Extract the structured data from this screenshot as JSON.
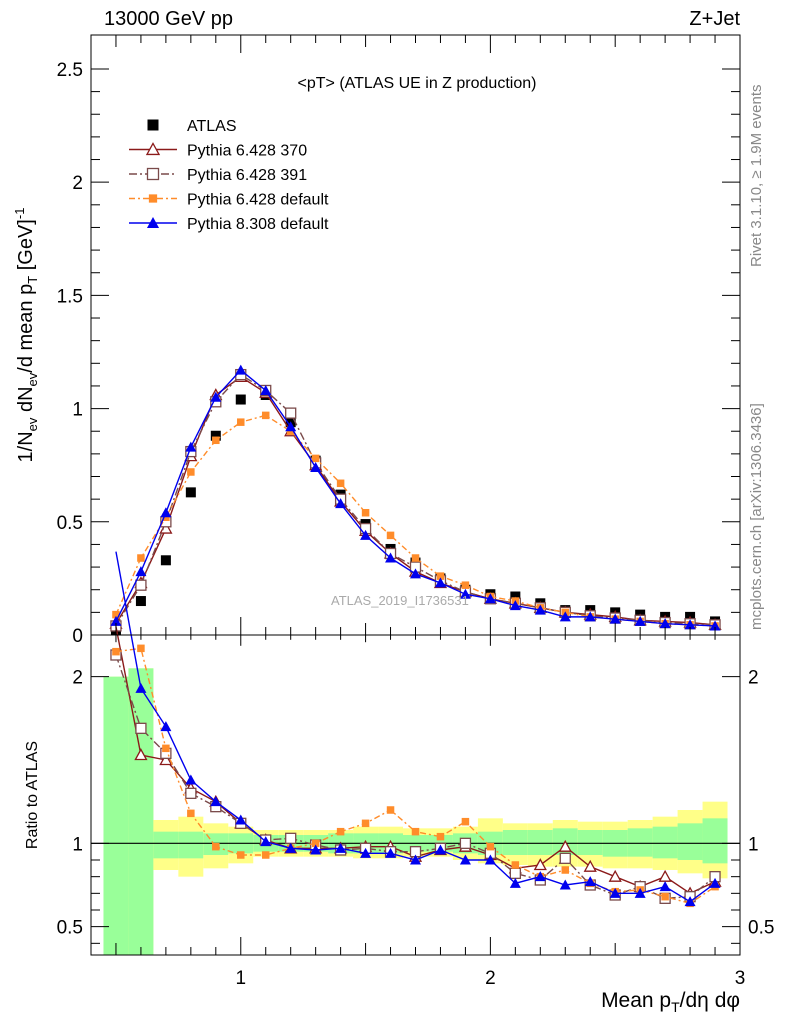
{
  "header": {
    "energy_label": "13000 GeV pp",
    "process_label": "Z+Jet"
  },
  "side": {
    "rivet_label": "Rivet 3.1.10, ≥ 1.9M events",
    "mcplots_label": "mcplots.cern.ch [arXiv:1306.3436]"
  },
  "watermark": "ATLAS_2019_I1736531",
  "chart_data": {
    "type": "line",
    "title": "<pT> (ATLAS UE in Z production)",
    "xlabel": "Mean p_T/dη dφ",
    "ylabel_main": "1/N_ev dN_ev/d mean p_T [GeV]^-1",
    "ylabel_ratio": "Ratio to ATLAS",
    "xlim": [
      0.4,
      3.0
    ],
    "ylim_main": [
      0,
      2.65
    ],
    "ylim_ratio": [
      0.33,
      2.25
    ],
    "x_ticks": [
      "1",
      "2",
      "3"
    ],
    "y_ticks_main": [
      "0",
      "0.5",
      "1",
      "1.5",
      "2",
      "2.5"
    ],
    "y_ticks_ratio": [
      "0.5",
      "1",
      "2"
    ],
    "legend_position": "top-left",
    "x": [
      0.5,
      0.6,
      0.7,
      0.8,
      0.9,
      1.0,
      1.1,
      1.2,
      1.3,
      1.4,
      1.5,
      1.6,
      1.7,
      1.8,
      1.9,
      2.0,
      2.1,
      2.2,
      2.3,
      2.4,
      2.5,
      2.6,
      2.7,
      2.8,
      2.9
    ],
    "series": [
      {
        "name": "ATLAS",
        "color": "#000000",
        "marker": "filled-square",
        "values": [
          0.02,
          0.15,
          0.33,
          0.63,
          0.88,
          1.04,
          1.06,
          0.94,
          0.77,
          0.62,
          0.49,
          0.38,
          0.32,
          0.25,
          0.2,
          0.18,
          0.17,
          0.14,
          0.11,
          0.11,
          0.1,
          0.09,
          0.08,
          0.08,
          0.06
        ],
        "ratio": [
          1,
          1,
          1,
          1,
          1,
          1,
          1,
          1,
          1,
          1,
          1,
          1,
          1,
          1,
          1,
          1,
          1,
          1,
          1,
          1,
          1,
          1,
          1,
          1,
          1
        ]
      },
      {
        "name": "Pythia 6.428 370",
        "color": "#8b1a1a",
        "marker": "open-triangle",
        "values": [
          0.05,
          0.23,
          0.47,
          0.79,
          1.06,
          1.14,
          1.07,
          0.9,
          0.75,
          0.59,
          0.46,
          0.36,
          0.28,
          0.23,
          0.19,
          0.16,
          0.14,
          0.12,
          0.1,
          0.09,
          0.08,
          0.065,
          0.06,
          0.055,
          0.045
        ],
        "ratio": [
          2.3,
          1.53,
          1.5,
          1.33,
          1.25,
          1.12,
          1.02,
          0.97,
          0.97,
          0.97,
          0.98,
          0.98,
          0.92,
          0.96,
          0.98,
          0.93,
          0.85,
          0.87,
          0.98,
          0.86,
          0.8,
          0.74,
          0.8,
          0.7,
          0.77
        ]
      },
      {
        "name": "Pythia 6.428 391",
        "color": "#7a4a4a",
        "marker": "open-square",
        "values": [
          0.04,
          0.22,
          0.5,
          0.81,
          1.03,
          1.15,
          1.08,
          0.98,
          0.76,
          0.6,
          0.47,
          0.36,
          0.3,
          0.24,
          0.19,
          0.16,
          0.14,
          0.12,
          0.1,
          0.085,
          0.075,
          0.065,
          0.055,
          0.05,
          0.045
        ],
        "ratio": [
          2.13,
          1.69,
          1.54,
          1.3,
          1.22,
          1.12,
          1.02,
          1.03,
          0.99,
          0.96,
          0.97,
          0.95,
          0.95,
          0.97,
          1.0,
          0.94,
          0.82,
          0.78,
          0.91,
          0.75,
          0.69,
          0.74,
          0.67,
          0.68,
          0.8
        ]
      },
      {
        "name": "Pythia 6.428 default",
        "color": "#ff8c2a",
        "marker": "filled-small-square",
        "values": [
          0.09,
          0.34,
          0.52,
          0.72,
          0.86,
          0.94,
          0.97,
          0.9,
          0.78,
          0.67,
          0.54,
          0.44,
          0.34,
          0.26,
          0.22,
          0.17,
          0.15,
          0.12,
          0.1,
          0.08,
          0.07,
          0.06,
          0.05,
          0.045,
          0.04
        ],
        "ratio": [
          2.15,
          2.17,
          1.57,
          1.18,
          0.98,
          0.93,
          0.93,
          0.97,
          1.0,
          1.07,
          1.12,
          1.2,
          1.07,
          1.04,
          1.13,
          0.98,
          0.87,
          0.8,
          0.84,
          0.76,
          0.71,
          0.72,
          0.68,
          0.64,
          0.74
        ]
      },
      {
        "name": "Pythia 8.308 default",
        "color": "#0000ee",
        "marker": "filled-triangle",
        "values": [
          0.06,
          0.28,
          0.54,
          0.83,
          1.05,
          1.17,
          1.08,
          0.92,
          0.74,
          0.58,
          0.44,
          0.34,
          0.27,
          0.23,
          0.18,
          0.16,
          0.13,
          0.11,
          0.08,
          0.08,
          0.07,
          0.06,
          0.05,
          0.045,
          0.04
        ],
        "ratio": [
          2.75,
          1.93,
          1.7,
          1.38,
          1.25,
          1.14,
          1.01,
          0.97,
          0.96,
          0.97,
          0.94,
          0.94,
          0.9,
          0.96,
          0.9,
          0.9,
          0.76,
          0.8,
          0.75,
          0.77,
          0.7,
          0.7,
          0.74,
          0.65,
          0.76
        ]
      }
    ],
    "uncertainty_bands": {
      "colors": {
        "inner": "#99ff99",
        "outer": "#ffff88"
      },
      "inner": [
        [
          0.33,
          2.0
        ],
        [
          0.33,
          2.05
        ],
        [
          0.91,
          1.07
        ],
        [
          0.91,
          1.07
        ],
        [
          0.93,
          1.06
        ],
        [
          0.94,
          1.06
        ],
        [
          0.95,
          1.05
        ],
        [
          0.95,
          1.05
        ],
        [
          0.95,
          1.05
        ],
        [
          0.94,
          1.06
        ],
        [
          0.94,
          1.06
        ],
        [
          0.94,
          1.06
        ],
        [
          0.95,
          1.05
        ],
        [
          0.95,
          1.05
        ],
        [
          0.94,
          1.06
        ],
        [
          0.93,
          1.07
        ],
        [
          0.93,
          1.08
        ],
        [
          0.93,
          1.08
        ],
        [
          0.93,
          1.09
        ],
        [
          0.93,
          1.08
        ],
        [
          0.92,
          1.08
        ],
        [
          0.92,
          1.09
        ],
        [
          0.91,
          1.1
        ],
        [
          0.9,
          1.12
        ],
        [
          0.88,
          1.15
        ]
      ],
      "outer": [
        [
          0.33,
          2.0
        ],
        [
          0.33,
          2.05
        ],
        [
          0.84,
          1.14
        ],
        [
          0.8,
          1.16
        ],
        [
          0.85,
          1.12
        ],
        [
          0.88,
          1.1
        ],
        [
          0.92,
          1.08
        ],
        [
          0.92,
          1.08
        ],
        [
          0.92,
          1.08
        ],
        [
          0.92,
          1.08
        ],
        [
          0.91,
          1.1
        ],
        [
          0.91,
          1.1
        ],
        [
          0.92,
          1.09
        ],
        [
          0.92,
          1.09
        ],
        [
          0.9,
          1.1
        ],
        [
          0.88,
          1.15
        ],
        [
          0.87,
          1.12
        ],
        [
          0.86,
          1.12
        ],
        [
          0.86,
          1.14
        ],
        [
          0.86,
          1.13
        ],
        [
          0.85,
          1.13
        ],
        [
          0.85,
          1.14
        ],
        [
          0.84,
          1.16
        ],
        [
          0.82,
          1.2
        ],
        [
          0.79,
          1.25
        ]
      ]
    }
  }
}
